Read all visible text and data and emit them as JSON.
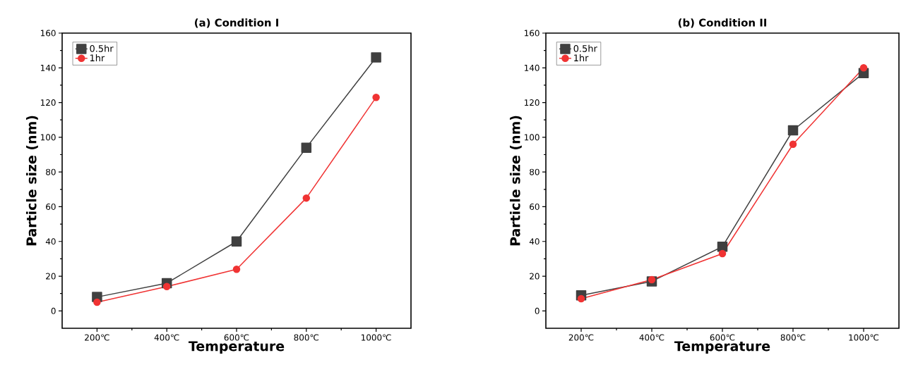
{
  "chart_data": [
    {
      "type": "line",
      "title": "(a) Condition I",
      "xlabel": "Temperature",
      "ylabel": "Particle size (nm)",
      "categories": [
        "200℃",
        "400℃",
        "600℃",
        "800℃",
        "1000℃"
      ],
      "series": [
        {
          "name": "0.5hr",
          "color": "#404040",
          "marker": "square",
          "values": [
            8,
            16,
            40,
            94,
            146
          ]
        },
        {
          "name": "1hr",
          "color": "#f03333",
          "marker": "circle",
          "values": [
            5,
            14,
            24,
            65,
            123
          ]
        }
      ],
      "ylim": [
        -10,
        160
      ],
      "yticks": [
        0,
        20,
        40,
        60,
        80,
        100,
        120,
        140,
        160
      ],
      "legend": "top left"
    },
    {
      "type": "line",
      "title": "(b) Condition II",
      "xlabel": "Temperature",
      "ylabel": "Particle size (nm)",
      "categories": [
        "200℃",
        "400℃",
        "600℃",
        "800℃",
        "1000℃"
      ],
      "series": [
        {
          "name": "0.5hr",
          "color": "#404040",
          "marker": "square",
          "values": [
            9,
            17,
            37,
            104,
            137
          ]
        },
        {
          "name": "1hr",
          "color": "#f03333",
          "marker": "circle",
          "values": [
            7,
            18,
            33,
            96,
            140
          ]
        }
      ],
      "ylim": [
        -10,
        160
      ],
      "yticks": [
        0,
        20,
        40,
        60,
        80,
        100,
        120,
        140,
        160
      ],
      "legend": "top left"
    }
  ]
}
